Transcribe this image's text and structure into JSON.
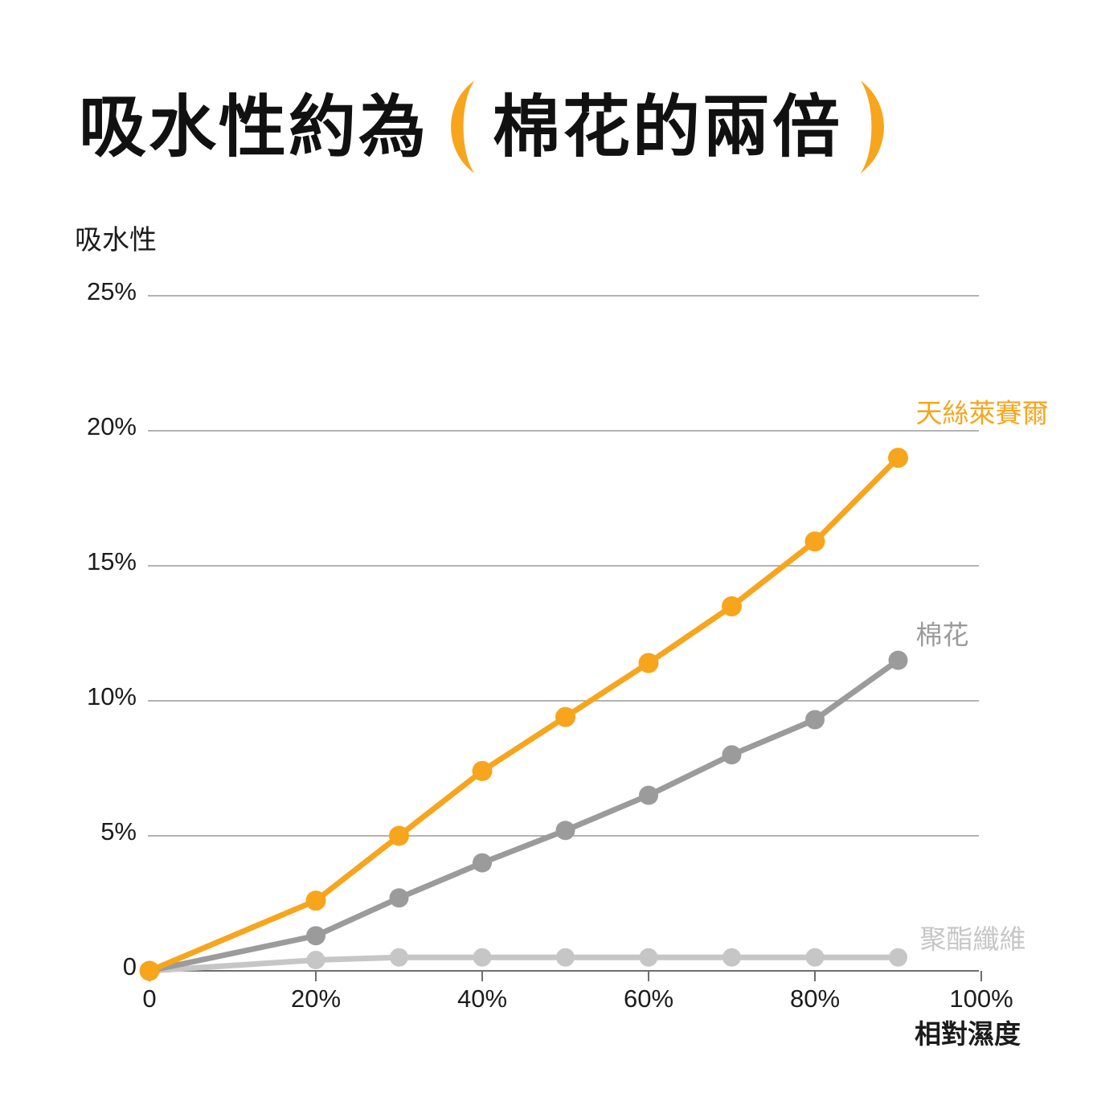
{
  "page": {
    "background": "#ffffff"
  },
  "title": {
    "part1": "吸水性約為",
    "paren_open": "（",
    "highlight": "棉花的兩倍",
    "paren_close": "）",
    "accent_color": "#F7A51D",
    "text_color": "#111111"
  },
  "chart_data": {
    "type": "line",
    "title": "吸水性約為（棉花的兩倍）",
    "ylabel": "吸水性",
    "xlabel": "相對濕度",
    "x": [
      0,
      20,
      30,
      40,
      50,
      60,
      70,
      80,
      90
    ],
    "series": [
      {
        "name": "天絲萊賽爾",
        "slug": "tencel-lyocell",
        "color": "#F7A51D",
        "values": [
          0,
          2.6,
          5.0,
          7.4,
          9.4,
          11.4,
          13.5,
          15.9,
          19.0
        ]
      },
      {
        "name": "棉花",
        "slug": "cotton",
        "color": "#9B9B9B",
        "values": [
          0,
          1.3,
          2.7,
          4.0,
          5.2,
          6.5,
          8.0,
          9.3,
          11.5
        ]
      },
      {
        "name": "聚酯纖維",
        "slug": "polyester",
        "color": "#C6C6C6",
        "values": [
          0,
          0.4,
          0.5,
          0.5,
          0.5,
          0.5,
          0.5,
          0.5,
          0.5
        ]
      }
    ],
    "x_ticks": [
      {
        "value": 0,
        "label": "0"
      },
      {
        "value": 20,
        "label": "20%"
      },
      {
        "value": 40,
        "label": "40%"
      },
      {
        "value": 60,
        "label": "60%"
      },
      {
        "value": 80,
        "label": "80%"
      },
      {
        "value": 100,
        "label": "100%"
      }
    ],
    "y_ticks": [
      {
        "value": 0,
        "label": "0"
      },
      {
        "value": 5,
        "label": "5%"
      },
      {
        "value": 10,
        "label": "10%"
      },
      {
        "value": 15,
        "label": "15%"
      },
      {
        "value": 20,
        "label": "20%"
      },
      {
        "value": 25,
        "label": "25%"
      }
    ],
    "xlim": [
      0,
      100
    ],
    "ylim": [
      0,
      25
    ],
    "grid": true,
    "legend_position": "line-end-labels",
    "grid_color": "#9A9A9A",
    "axis_color": "#6E6E6E",
    "tick_text_color": "#1C1C1C"
  }
}
